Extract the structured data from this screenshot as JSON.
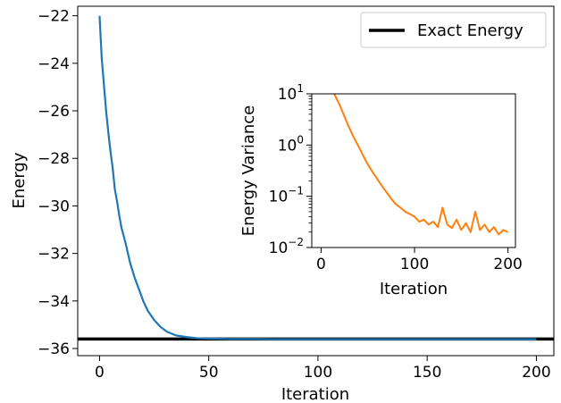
{
  "chart_data": [
    {
      "type": "line",
      "xlabel": "Iteration",
      "ylabel": "Energy",
      "xlim": [
        -10,
        208
      ],
      "ylim": [
        -36.3,
        -21.6
      ],
      "xticks": [
        0,
        50,
        100,
        150,
        200
      ],
      "yticks": [
        -22,
        -24,
        -26,
        -28,
        -30,
        -32,
        -34,
        -36
      ],
      "xtick_labels": [
        "0",
        "50",
        "100",
        "150",
        "200"
      ],
      "ytick_labels": [
        "−22",
        "−24",
        "−26",
        "−28",
        "−30",
        "−32",
        "−34",
        "−36"
      ],
      "legend": {
        "position": "top-right",
        "entries": [
          "Exact Energy"
        ]
      },
      "reference_line": {
        "name": "Exact Energy",
        "y": -35.6,
        "x_range": [
          -10,
          208
        ],
        "color": "#000000"
      },
      "series": [
        {
          "color": "#1f77b4",
          "x": [
            0,
            1,
            2,
            3,
            4,
            5,
            6,
            7,
            8,
            9,
            10,
            12,
            14,
            16,
            18,
            20,
            22,
            25,
            28,
            31,
            35,
            40,
            45,
            50,
            55,
            60,
            70,
            80,
            100,
            130,
            160,
            200
          ],
          "y": [
            -22.0,
            -23.8,
            -24.9,
            -26.0,
            -26.9,
            -27.7,
            -28.4,
            -29.3,
            -29.8,
            -30.4,
            -30.9,
            -31.6,
            -32.4,
            -33.0,
            -33.5,
            -34.0,
            -34.4,
            -34.8,
            -35.1,
            -35.3,
            -35.45,
            -35.52,
            -35.57,
            -35.58,
            -35.59,
            -35.6,
            -35.6,
            -35.61,
            -35.61,
            -35.61,
            -35.61,
            -35.61
          ]
        }
      ]
    },
    {
      "type": "line",
      "inset": true,
      "xlabel": "Iteration",
      "ylabel": "Energy Variance",
      "yscale": "log",
      "xlim": [
        -10,
        208
      ],
      "ylim": [
        0.01,
        10
      ],
      "xticks": [
        0,
        100,
        200
      ],
      "xtick_labels": [
        "0",
        "100",
        "200"
      ],
      "yticks": [
        0.01,
        0.1,
        1,
        10
      ],
      "ytick_labels": [
        {
          "base": "10",
          "exp": "−2"
        },
        {
          "base": "10",
          "exp": "−1"
        },
        {
          "base": "10",
          "exp": "0"
        },
        {
          "base": "10",
          "exp": "1"
        }
      ],
      "series": [
        {
          "color": "#ff7f0e",
          "x": [
            14,
            20,
            25,
            30,
            35,
            40,
            45,
            50,
            55,
            60,
            65,
            70,
            75,
            80,
            85,
            90,
            95,
            100,
            105,
            110,
            115,
            120,
            125,
            130,
            135,
            140,
            145,
            150,
            155,
            160,
            165,
            170,
            175,
            180,
            185,
            190,
            195,
            200
          ],
          "y": [
            10,
            6.0,
            3.6,
            2.2,
            1.4,
            0.95,
            0.62,
            0.42,
            0.3,
            0.22,
            0.16,
            0.12,
            0.09,
            0.07,
            0.06,
            0.05,
            0.045,
            0.04,
            0.032,
            0.035,
            0.028,
            0.032,
            0.025,
            0.06,
            0.028,
            0.024,
            0.035,
            0.022,
            0.03,
            0.02,
            0.05,
            0.022,
            0.028,
            0.02,
            0.025,
            0.018,
            0.022,
            0.02
          ]
        }
      ]
    }
  ]
}
